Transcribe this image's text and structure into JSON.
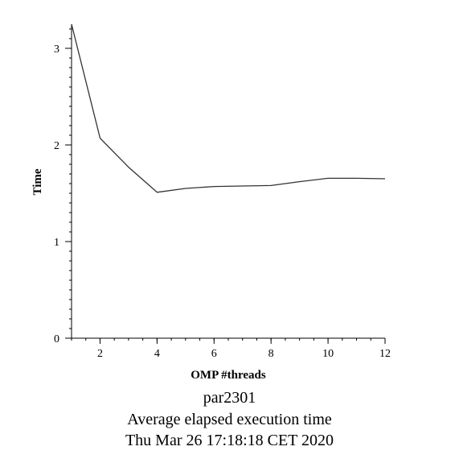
{
  "chart_data": {
    "type": "line",
    "xlabel": "OMP #threads",
    "ylabel": "Time",
    "xlim": [
      1,
      12
    ],
    "ylim": [
      0,
      3.25
    ],
    "x_ticks": [
      2,
      4,
      6,
      8,
      10,
      12
    ],
    "y_ticks": [
      0,
      1,
      2,
      3
    ],
    "grid": false,
    "series": [
      {
        "x": [
          1,
          2,
          3,
          4,
          5,
          6,
          7,
          8,
          9,
          10,
          11,
          12
        ],
        "y": [
          3.25,
          2.07,
          1.77,
          1.51,
          1.55,
          1.57,
          1.575,
          1.58,
          1.62,
          1.655,
          1.655,
          1.65
        ],
        "color": "#333333"
      }
    ]
  },
  "captions": {
    "line1": "par2301",
    "line2": "Average elapsed execution time",
    "line3": "Thu Mar 26 17:18:18 CET 2020"
  }
}
